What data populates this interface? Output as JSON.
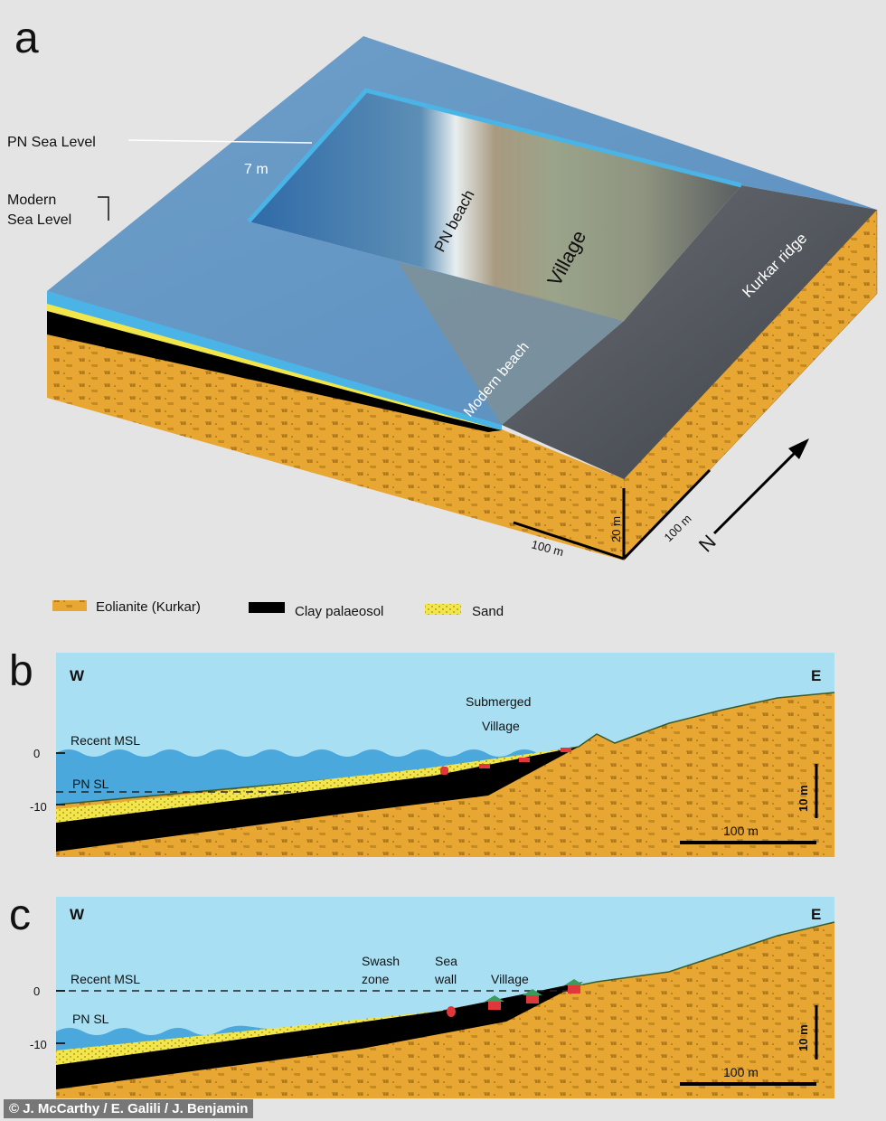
{
  "panel_a": {
    "letter": "a",
    "pn_sea_level": "PN Sea Level",
    "modern_sea_level_1": "Modern",
    "modern_sea_level_2": "Sea Level",
    "depth": "7 m",
    "pn_beach": "PN beach",
    "village": "Village",
    "kurkar_ridge": "Kurkar ridge",
    "modern_beach": "Modern beach",
    "scale_20m": "20 m",
    "scale_100m_front": "100 m",
    "scale_100m_side": "100 m",
    "north": "N"
  },
  "legend": [
    {
      "label": "Eolianite (Kurkar)",
      "color": "#e8a633"
    },
    {
      "label": "Clay palaeosol",
      "color": "#000000"
    },
    {
      "label": "Sand",
      "color": "#f2e64a"
    }
  ],
  "panel_b": {
    "letter": "b",
    "west": "W",
    "east": "E",
    "submerged_1": "Submerged",
    "submerged_2": "Village",
    "recent_msl": "Recent MSL",
    "pn_sl": "PN  SL",
    "tick_0": "0",
    "tick_m10": "-10",
    "scale_v": "10 m",
    "scale_h": "100 m"
  },
  "panel_c": {
    "letter": "c",
    "west": "W",
    "east": "E",
    "swash_1": "Swash",
    "swash_2": "zone",
    "seawall_1": "Sea",
    "seawall_2": "wall",
    "village": "Village",
    "recent_msl": "Recent MSL",
    "pn_sl": "PN  SL",
    "tick_0": "0",
    "tick_m10": "-10",
    "scale_v": "10 m",
    "scale_h": "100 m"
  },
  "credit": "© J. McCarthy / E. Galili / J. Benjamin",
  "colors": {
    "sky": "#a9dff2",
    "sea": "#4aa8dd",
    "eolianite": "#e8a633",
    "sand": "#f2e64a",
    "clay": "#000000",
    "house": "#e0383a",
    "roof": "#3c9a5a"
  }
}
